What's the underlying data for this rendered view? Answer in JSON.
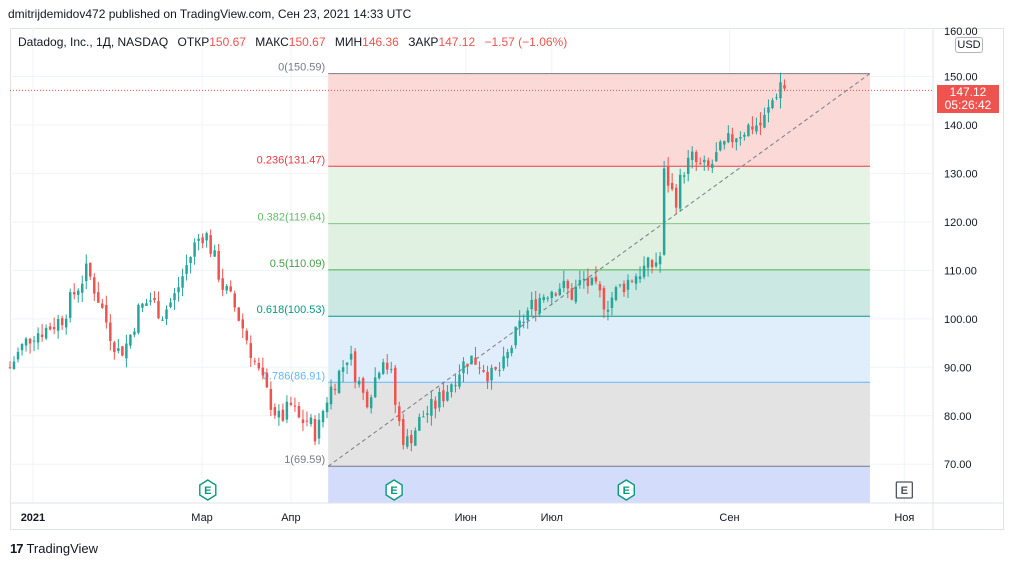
{
  "header": {
    "published_line": "dmitrijdemidov472 published on TradingView.com, Сен 23, 2021 14:33 UTC"
  },
  "symbol": {
    "name": "Datadog, Inc., 1Д, NASDAQ",
    "open_label": "ОТКР",
    "open_value": "150.67",
    "high_label": "МАКС",
    "high_value": "150.67",
    "low_label": "МИН",
    "low_value": "146.36",
    "close_label": "ЗАКР",
    "close_value": "147.12",
    "change": "−1.57 (−1.06%)"
  },
  "price_axis": {
    "currency": "USD",
    "top_partial_label": "160.00",
    "current_price": "147.12",
    "countdown": "05:26:42"
  },
  "footer": {
    "brand": "TradingView",
    "brand_mark": "17"
  },
  "earnings_marker": "E",
  "colors": {
    "up": "#26a69a",
    "down": "#ef5350",
    "grid": "#f0f3fa",
    "axis_text": "#131722"
  },
  "chart_data": {
    "type": "candlestick",
    "ylim": [
      62,
      160
    ],
    "yticks": [
      70,
      80,
      90,
      100,
      110,
      120,
      130,
      140,
      150
    ],
    "ytick_labels": [
      "70.00",
      "80.00",
      "90.00",
      "100.00",
      "110.00",
      "120.00",
      "130.00",
      "140.00",
      "150.00"
    ],
    "xlim_days": [
      -8,
      314
    ],
    "xticks": [
      {
        "day": 0,
        "label": "2021"
      },
      {
        "day": 59,
        "label": "Мар"
      },
      {
        "day": 90,
        "label": "Апр"
      },
      {
        "day": 151,
        "label": "Июн"
      },
      {
        "day": 181,
        "label": "Июл"
      },
      {
        "day": 243,
        "label": "Сен"
      },
      {
        "day": 304,
        "label": "Ноя"
      }
    ],
    "fib_levels": [
      {
        "ratio": "0",
        "price": 150.59,
        "label": "0(150.59)",
        "line": "#787b86",
        "fill": "#fbd9d6",
        "label_color": "#787b86"
      },
      {
        "ratio": "0.236",
        "price": 131.47,
        "label": "0.236(131.47)",
        "line": "#f23645",
        "fill": "#e6f4e6",
        "label_color": "#f23645"
      },
      {
        "ratio": "0.382",
        "price": 119.64,
        "label": "0.382(119.64)",
        "line": "#81c784",
        "fill": "#e1f1e1",
        "label_color": "#66bb6a"
      },
      {
        "ratio": "0.5",
        "price": 110.09,
        "label": "0.5(110.09)",
        "line": "#4caf50",
        "fill": "#cce8e3",
        "label_color": "#43a047"
      },
      {
        "ratio": "0.618",
        "price": 100.53,
        "label": "0.618(100.53)",
        "line": "#089981",
        "fill": "#e0eefb",
        "label_color": "#089981"
      },
      {
        "ratio": "0.786",
        "price": 86.91,
        "label": "0.786(86.91)",
        "line": "#64b5f6",
        "fill": "#e3e3e4",
        "label_color": "#64b5f6"
      },
      {
        "ratio": "1",
        "price": 69.59,
        "label": "1(69.59)",
        "line": "#787b86",
        "fill": "#d3dcfb",
        "label_color": "#787b86"
      }
    ],
    "fib_range_days": [
      103,
      292
    ],
    "trend_line": {
      "start": {
        "day": 103,
        "price": 69.59
      },
      "end": {
        "day": 292,
        "price": 150.59
      }
    },
    "earnings_days": [
      61,
      126,
      207,
      304
    ],
    "key_points": [
      [
        -8,
        90
      ],
      [
        -4,
        94
      ],
      [
        0,
        97
      ],
      [
        5,
        98
      ],
      [
        10,
        100
      ],
      [
        15,
        106
      ],
      [
        19,
        110
      ],
      [
        23,
        104
      ],
      [
        27,
        97
      ],
      [
        30,
        93
      ],
      [
        33,
        95
      ],
      [
        37,
        102
      ],
      [
        41,
        104
      ],
      [
        45,
        101
      ],
      [
        49,
        104
      ],
      [
        53,
        110
      ],
      [
        57,
        116
      ],
      [
        60,
        118
      ],
      [
        63,
        113
      ],
      [
        66,
        107
      ],
      [
        70,
        103
      ],
      [
        74,
        97
      ],
      [
        78,
        90
      ],
      [
        82,
        84
      ],
      [
        86,
        79
      ],
      [
        90,
        82
      ],
      [
        93,
        79
      ],
      [
        96,
        79
      ],
      [
        99,
        76
      ],
      [
        102,
        83
      ],
      [
        105,
        87
      ],
      [
        108,
        90
      ],
      [
        110,
        93
      ],
      [
        113,
        88
      ],
      [
        116,
        83
      ],
      [
        119,
        87
      ],
      [
        122,
        93
      ],
      [
        125,
        88
      ],
      [
        127,
        80
      ],
      [
        130,
        74
      ],
      [
        133,
        77
      ],
      [
        136,
        80
      ],
      [
        140,
        82
      ],
      [
        144,
        85
      ],
      [
        148,
        89
      ],
      [
        152,
        92
      ],
      [
        156,
        91
      ],
      [
        160,
        88
      ],
      [
        164,
        90
      ],
      [
        168,
        96
      ],
      [
        172,
        101
      ],
      [
        176,
        104
      ],
      [
        180,
        106
      ],
      [
        184,
        107
      ],
      [
        188,
        105
      ],
      [
        192,
        108
      ],
      [
        196,
        106
      ],
      [
        200,
        103
      ],
      [
        204,
        106
      ],
      [
        208,
        108
      ],
      [
        212,
        110
      ],
      [
        216,
        111
      ],
      [
        219,
        113
      ],
      [
        220,
        130
      ],
      [
        222,
        128
      ],
      [
        224,
        124
      ],
      [
        227,
        131
      ],
      [
        230,
        133
      ],
      [
        233,
        131
      ],
      [
        236,
        131
      ],
      [
        239,
        134
      ],
      [
        242,
        136
      ],
      [
        245,
        138
      ],
      [
        248,
        139
      ],
      [
        251,
        140
      ],
      [
        254,
        140
      ],
      [
        256,
        142
      ],
      [
        258,
        145
      ],
      [
        261,
        149
      ],
      [
        263,
        147.12
      ]
    ]
  }
}
